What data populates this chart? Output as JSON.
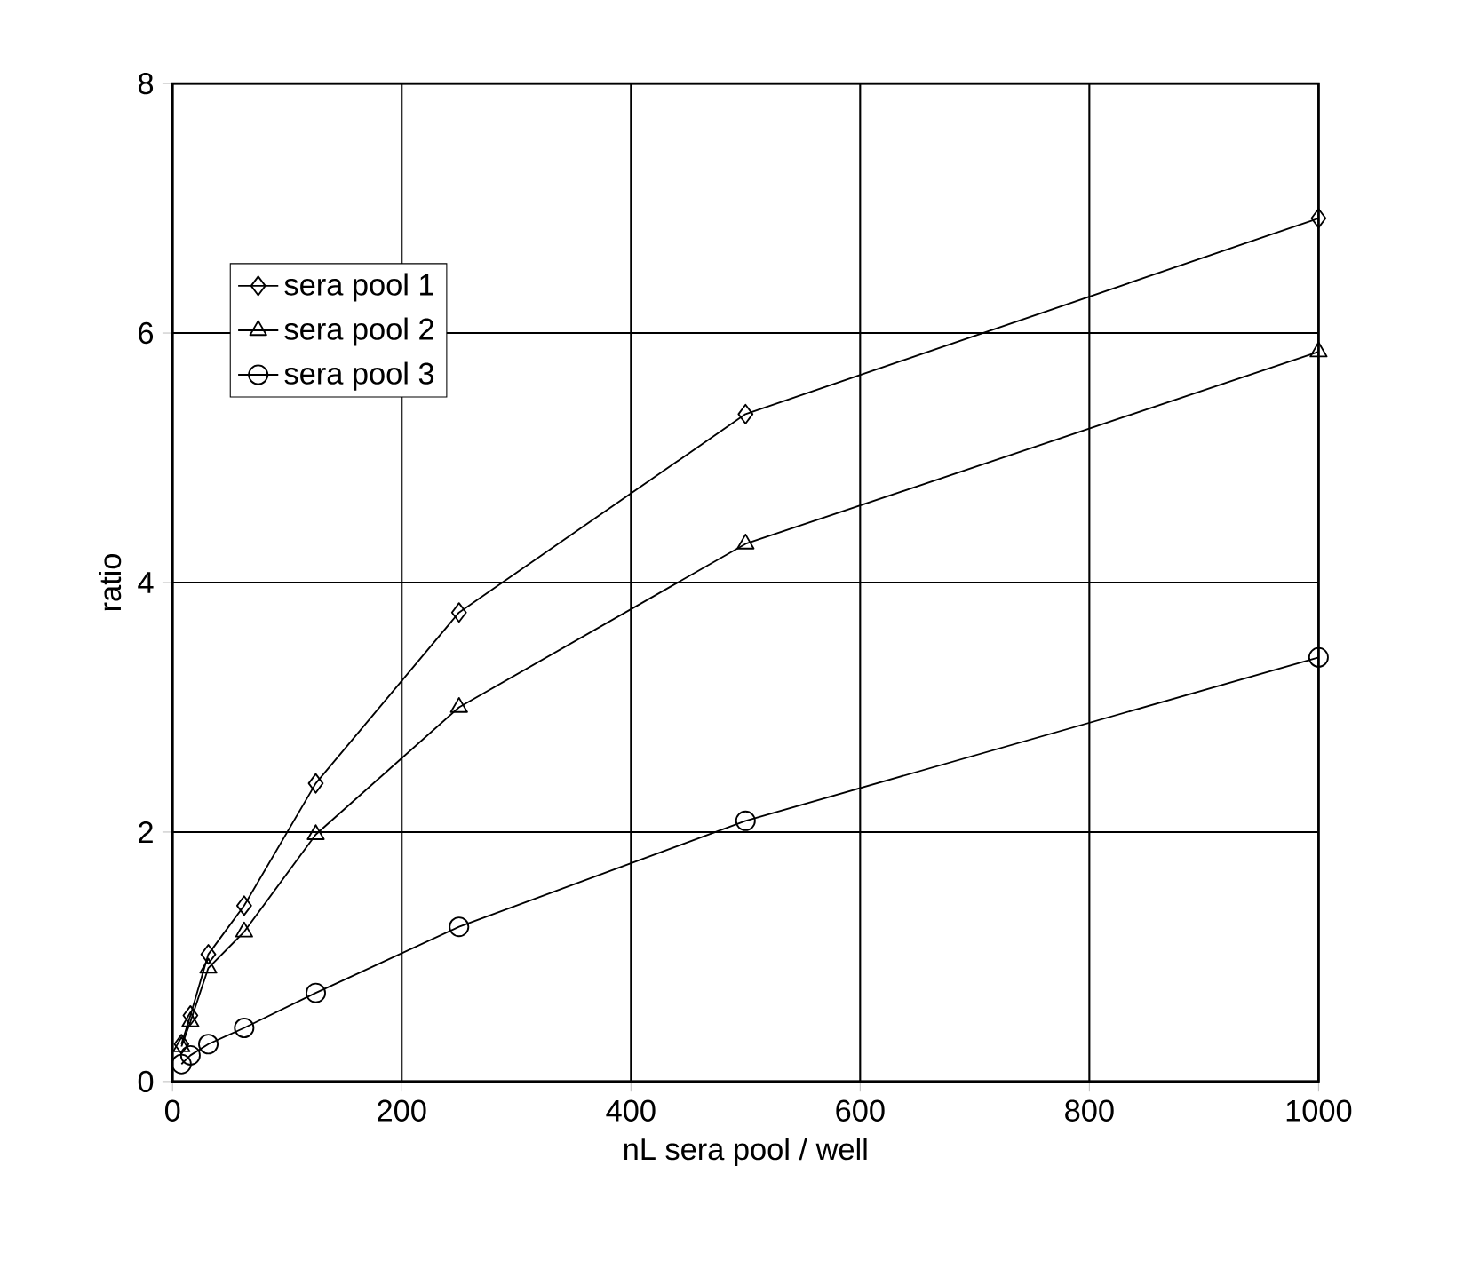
{
  "chart_data": {
    "type": "line",
    "xlabel": "nL sera pool / well",
    "ylabel": "ratio",
    "xlim": [
      0,
      1000
    ],
    "ylim": [
      0,
      8
    ],
    "xticks": [
      0,
      200,
      400,
      600,
      800,
      1000
    ],
    "yticks": [
      0,
      2,
      4,
      6,
      8
    ],
    "grid": true,
    "legend": "top left",
    "series": [
      {
        "name": "sera pool 1",
        "color": "#000000",
        "marker": "diamond",
        "x": [
          7.8125,
          15.625,
          31.25,
          62.5,
          125,
          250,
          500,
          1000
        ],
        "values": [
          0.3,
          0.53,
          1.02,
          1.41,
          2.39,
          3.76,
          5.35,
          6.92
        ]
      },
      {
        "name": "sera pool 2",
        "color": "#000000",
        "marker": "triangle",
        "x": [
          7.8125,
          15.625,
          31.25,
          62.5,
          125,
          250,
          500,
          1000
        ],
        "values": [
          0.28,
          0.48,
          0.91,
          1.2,
          1.98,
          3.0,
          4.31,
          5.85
        ]
      },
      {
        "name": "sera pool 3",
        "color": "#000000",
        "marker": "circle",
        "x": [
          7.8125,
          15.625,
          31.25,
          62.5,
          125,
          250,
          500,
          1000
        ],
        "values": [
          0.14,
          0.21,
          0.3,
          0.43,
          0.71,
          1.24,
          2.09,
          3.4
        ]
      }
    ]
  }
}
